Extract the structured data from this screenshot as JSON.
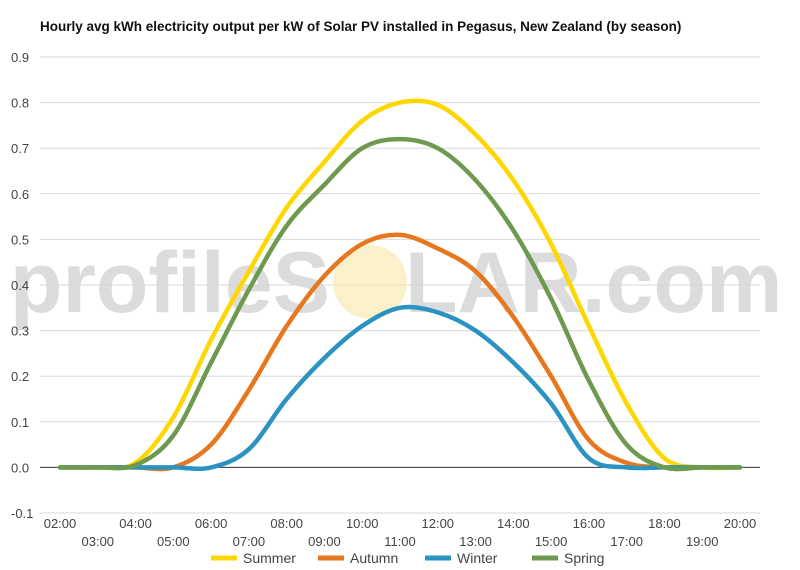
{
  "chart_data": {
    "type": "line",
    "title": "Hourly avg kWh electricity output per kW of Solar PV installed in Pegasus, New Zealand (by season)",
    "xlabel": "",
    "ylabel": "",
    "x": [
      "02:00",
      "03:00",
      "04:00",
      "05:00",
      "06:00",
      "07:00",
      "08:00",
      "09:00",
      "10:00",
      "11:00",
      "12:00",
      "13:00",
      "14:00",
      "15:00",
      "16:00",
      "17:00",
      "18:00",
      "19:00",
      "20:00"
    ],
    "y_ticks": [
      "-0.1",
      "0.0",
      "0.1",
      "0.2",
      "0.3",
      "0.4",
      "0.5",
      "0.6",
      "0.7",
      "0.8",
      "0.9"
    ],
    "ylim": [
      -0.1,
      0.9
    ],
    "grid": true,
    "legend_position": "bottom",
    "series": [
      {
        "name": "Summer",
        "color": "#ffd700",
        "values": [
          0,
          0,
          0.01,
          0.11,
          0.28,
          0.43,
          0.57,
          0.67,
          0.76,
          0.8,
          0.795,
          0.73,
          0.63,
          0.49,
          0.31,
          0.14,
          0.02,
          0,
          0
        ]
      },
      {
        "name": "Autumn",
        "color": "#e6771e",
        "values": [
          0,
          0,
          0,
          0,
          0.05,
          0.17,
          0.31,
          0.42,
          0.49,
          0.51,
          0.48,
          0.43,
          0.33,
          0.2,
          0.06,
          0.01,
          0,
          0,
          0
        ]
      },
      {
        "name": "Winter",
        "color": "#2b93c1",
        "values": [
          0,
          0,
          0,
          0,
          0,
          0.04,
          0.15,
          0.24,
          0.31,
          0.35,
          0.34,
          0.3,
          0.23,
          0.14,
          0.02,
          0,
          0,
          0,
          0
        ]
      },
      {
        "name": "Spring",
        "color": "#6e9a50",
        "values": [
          0,
          0,
          0.005,
          0.07,
          0.23,
          0.39,
          0.53,
          0.62,
          0.7,
          0.72,
          0.7,
          0.63,
          0.52,
          0.37,
          0.19,
          0.05,
          0,
          0,
          0
        ]
      }
    ]
  },
  "watermark": {
    "left": "profileS",
    "right": "LAR.com"
  }
}
